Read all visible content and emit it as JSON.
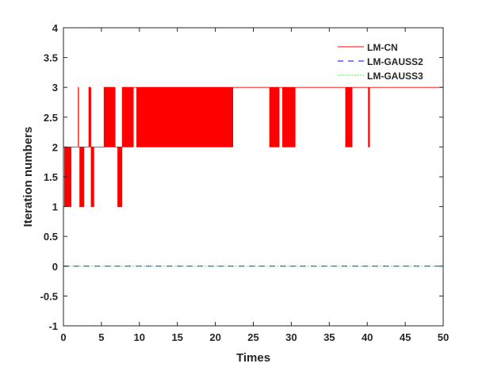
{
  "chart_data": {
    "type": "line",
    "title": "",
    "xlabel": "Times",
    "ylabel": "Iteration numbers",
    "xlim": [
      0,
      50
    ],
    "ylim": [
      -1,
      4
    ],
    "xticks": [
      "0",
      "5",
      "10",
      "15",
      "20",
      "25",
      "30",
      "35",
      "40",
      "45",
      "50"
    ],
    "yticks": [
      "-1",
      "-0.5",
      "0",
      "0.5",
      "1",
      "1.5",
      "2",
      "2.5",
      "3",
      "3.5",
      "4"
    ],
    "xtick_values": [
      0,
      5,
      10,
      15,
      20,
      25,
      30,
      35,
      40,
      45,
      50
    ],
    "ytick_values": [
      -1,
      -0.5,
      0,
      0.5,
      1,
      1.5,
      2,
      2.5,
      3,
      3.5,
      4
    ],
    "grid": false,
    "legend_position": "top-right",
    "oscillation_period": 0.1,
    "series": [
      {
        "name": "LM-CN",
        "color": "#ff0000",
        "style": "solid",
        "segments_note": "[t_start, t_end, low, high] — value alternates between low and high when they differ",
        "segments": [
          [
            0,
            0.1,
            2,
            2
          ],
          [
            0.1,
            1.0,
            1,
            2
          ],
          [
            1.0,
            1.9,
            2,
            2
          ],
          [
            1.9,
            2.0,
            2,
            3
          ],
          [
            2.0,
            2.1,
            2,
            2
          ],
          [
            2.1,
            2.7,
            1,
            2
          ],
          [
            2.7,
            3.3,
            2,
            2
          ],
          [
            3.3,
            3.6,
            2,
            3
          ],
          [
            3.6,
            4.0,
            1,
            2
          ],
          [
            4.0,
            5.3,
            2,
            2
          ],
          [
            5.3,
            6.8,
            2,
            3
          ],
          [
            6.8,
            7.1,
            2,
            2
          ],
          [
            7.1,
            7.7,
            1,
            2
          ],
          [
            7.7,
            9.2,
            2,
            3
          ],
          [
            9.2,
            9.6,
            3,
            3
          ],
          [
            9.6,
            22.3,
            2,
            3
          ],
          [
            22.3,
            27.1,
            3,
            3
          ],
          [
            27.1,
            28.4,
            2,
            3
          ],
          [
            28.4,
            28.8,
            3,
            3
          ],
          [
            28.8,
            30.5,
            2,
            3
          ],
          [
            30.5,
            37.1,
            3,
            3
          ],
          [
            37.1,
            38.0,
            2,
            3
          ],
          [
            38.0,
            40.1,
            3,
            3
          ],
          [
            40.1,
            40.3,
            2,
            3
          ],
          [
            40.3,
            50,
            3,
            3
          ]
        ]
      },
      {
        "name": "LM-GAUSS2",
        "color": "#0000ff",
        "style": "dashed",
        "x": [
          0,
          50
        ],
        "y": [
          0,
          0
        ]
      },
      {
        "name": "LM-GAUSS3",
        "color": "#00ff00",
        "style": "dotted",
        "x": [
          0,
          50
        ],
        "y": [
          0,
          0
        ]
      }
    ]
  }
}
